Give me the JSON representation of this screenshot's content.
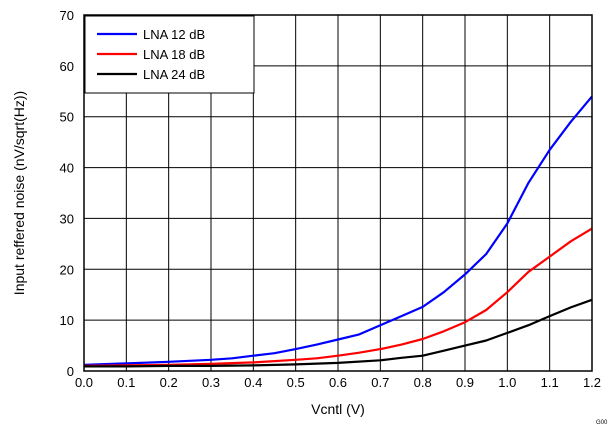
{
  "chart_data": {
    "type": "line",
    "xlabel": "Vcntl (V)",
    "ylabel": "Input reffered noise (nV/sqrt(Hz))",
    "xlim": [
      0.0,
      1.2
    ],
    "ylim": [
      0,
      70
    ],
    "x_ticks": [
      "0.0",
      "0.1",
      "0.2",
      "0.3",
      "0.4",
      "0.5",
      "0.6",
      "0.7",
      "0.8",
      "0.9",
      "1.0",
      "1.1",
      "1.2"
    ],
    "y_ticks": [
      "0",
      "10",
      "20",
      "30",
      "40",
      "50",
      "60",
      "70"
    ],
    "grid": true,
    "legend_position": "top-left",
    "corner_label": "G00",
    "series": [
      {
        "name": "LNA 12 dB",
        "color": "#0000ff",
        "x": [
          0.0,
          0.1,
          0.2,
          0.3,
          0.35,
          0.4,
          0.45,
          0.5,
          0.55,
          0.6,
          0.65,
          0.7,
          0.75,
          0.8,
          0.85,
          0.9,
          0.95,
          1.0,
          1.05,
          1.1,
          1.15,
          1.2
        ],
        "y": [
          1.2,
          1.5,
          1.8,
          2.2,
          2.5,
          3.0,
          3.5,
          4.3,
          5.2,
          6.2,
          7.2,
          9.0,
          10.8,
          12.6,
          15.5,
          19.0,
          23.0,
          29.0,
          37.0,
          43.5,
          49.0,
          54.0
        ]
      },
      {
        "name": "LNA 18 dB",
        "color": "#ff0000",
        "x": [
          0.0,
          0.1,
          0.2,
          0.3,
          0.4,
          0.5,
          0.55,
          0.6,
          0.65,
          0.7,
          0.75,
          0.8,
          0.85,
          0.9,
          0.95,
          1.0,
          1.05,
          1.1,
          1.15,
          1.2
        ],
        "y": [
          1.0,
          1.1,
          1.2,
          1.4,
          1.7,
          2.2,
          2.5,
          3.0,
          3.6,
          4.3,
          5.2,
          6.3,
          7.8,
          9.6,
          12.0,
          15.5,
          19.5,
          22.5,
          25.5,
          28.0
        ]
      },
      {
        "name": "LNA 24 dB",
        "color": "#000000",
        "x": [
          0.0,
          0.1,
          0.2,
          0.3,
          0.4,
          0.5,
          0.6,
          0.7,
          0.75,
          0.8,
          0.85,
          0.9,
          0.95,
          1.0,
          1.05,
          1.1,
          1.15,
          1.2
        ],
        "y": [
          0.9,
          0.9,
          1.0,
          1.0,
          1.1,
          1.3,
          1.6,
          2.1,
          2.6,
          3.0,
          4.0,
          5.0,
          6.0,
          7.5,
          9.0,
          10.8,
          12.5,
          14.0
        ]
      }
    ]
  }
}
